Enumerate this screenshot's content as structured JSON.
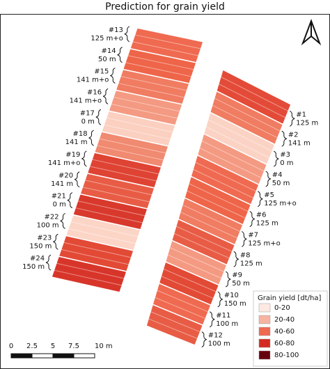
{
  "title": "Prediction for grain yield",
  "left_strip": [
    {
      "id": "#13",
      "label": "125 m+o",
      "color": "#ef6a50"
    },
    {
      "id": "#14",
      "label": "50 m",
      "color": "#ee6549"
    },
    {
      "id": "#15",
      "label": "141 m+o",
      "color": "#f07c62"
    },
    {
      "id": "#16",
      "label": "141 m+o",
      "color": "#f49a82"
    },
    {
      "id": "#17",
      "label": "0 m",
      "color": "#fbd0c0"
    },
    {
      "id": "#18",
      "label": "141 m",
      "color": "#f08a70"
    },
    {
      "id": "#19",
      "label": "141 m+o",
      "color": "#df4333"
    },
    {
      "id": "#20",
      "label": "141 m",
      "color": "#e85c45"
    },
    {
      "id": "#21",
      "label": "0 m",
      "color": "#d8392c"
    },
    {
      "id": "#22",
      "label": "100 m",
      "color": "#fcd5c7"
    },
    {
      "id": "#23",
      "label": "150 m",
      "color": "#e24a36"
    },
    {
      "id": "#24",
      "label": "150 m",
      "color": "#d8352a"
    }
  ],
  "right_strip": [
    {
      "id": "#1",
      "label": "125 m",
      "color": "#e34b38"
    },
    {
      "id": "#2",
      "label": "141 m",
      "color": "#f07c62"
    },
    {
      "id": "#3",
      "label": "0 m",
      "color": "#fbd3c5"
    },
    {
      "id": "#4",
      "label": "50 m",
      "color": "#f49a82"
    },
    {
      "id": "#5",
      "label": "125 m+o",
      "color": "#ef6a50"
    },
    {
      "id": "#6",
      "label": "125 m",
      "color": "#ee6549"
    },
    {
      "id": "#7",
      "label": "125 m+o",
      "color": "#f07c62"
    },
    {
      "id": "#8",
      "label": "125 m",
      "color": "#e85c45"
    },
    {
      "id": "#9",
      "label": "50 m",
      "color": "#f49a82"
    },
    {
      "id": "#10",
      "label": "150 m",
      "color": "#e24a36"
    },
    {
      "id": "#11",
      "label": "100 m",
      "color": "#ef6a50"
    },
    {
      "id": "#12",
      "label": "100 m",
      "color": "#e85c45"
    }
  ],
  "legend": {
    "title": "Grain yield [dt/ha]",
    "items": [
      {
        "label": "0-20",
        "color": "#fde9e1"
      },
      {
        "label": "20-40",
        "color": "#f6b4a1"
      },
      {
        "label": "40-60",
        "color": "#ef6a50"
      },
      {
        "label": "60-80",
        "color": "#d42a22"
      },
      {
        "label": "80-100",
        "color": "#67000d"
      }
    ]
  },
  "scale_bar": {
    "labels": [
      "0",
      "2.5",
      "5",
      "7.5",
      "10 m"
    ]
  }
}
